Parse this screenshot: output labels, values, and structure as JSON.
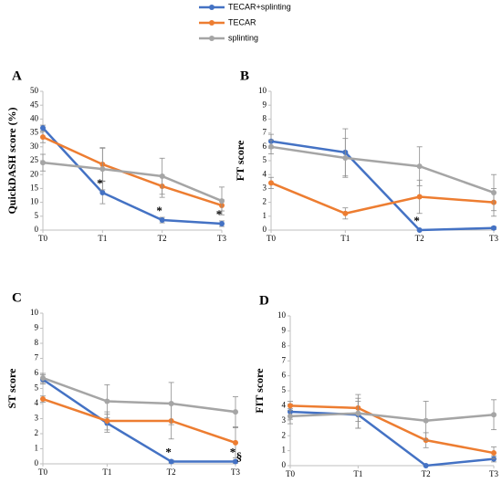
{
  "chart_data": [
    {
      "type": "line",
      "title": "A",
      "y_label": "QuickDASH score (%)",
      "categories": [
        "T0",
        "T1",
        "T2",
        "T3"
      ],
      "ylim": [
        0,
        50
      ],
      "yticks": [
        0,
        5,
        10,
        15,
        20,
        25,
        30,
        35,
        40,
        45,
        50
      ],
      "series": [
        {
          "name": "TECAR+splinting",
          "color": "#4472c4",
          "values": [
            36.8,
            13.5,
            3.6,
            2.3
          ],
          "errors": [
            1,
            4,
            1,
            1
          ]
        },
        {
          "name": "TECAR",
          "color": "#ed7d31",
          "values": [
            33.5,
            23.7,
            15.8,
            8.9
          ],
          "errors": [
            2,
            6,
            4,
            2
          ]
        },
        {
          "name": "splinting",
          "color": "#a5a5a5",
          "values": [
            24.3,
            22.0,
            19.4,
            10.5
          ],
          "errors": [
            3,
            7.5,
            6.5,
            5
          ]
        }
      ],
      "annotations": [
        {
          "text": "*",
          "category": "T1"
        },
        {
          "text": "*",
          "category": "T2"
        },
        {
          "text": "*",
          "category": "T3"
        }
      ]
    },
    {
      "type": "line",
      "title": "B",
      "y_label": "FT score",
      "categories": [
        "T0",
        "T1",
        "T2",
        "T3"
      ],
      "ylim": [
        0,
        10
      ],
      "yticks": [
        0,
        1,
        2,
        3,
        4,
        5,
        6,
        7,
        8,
        9,
        10
      ],
      "series": [
        {
          "name": "TECAR+splinting",
          "color": "#4472c4",
          "values": [
            6.4,
            5.6,
            0,
            0.15
          ],
          "errors": [
            0.5,
            1.7,
            0,
            0.1
          ]
        },
        {
          "name": "TECAR",
          "color": "#ed7d31",
          "values": [
            3.4,
            1.2,
            2.4,
            2.0
          ],
          "errors": [
            0.4,
            0.4,
            1.2,
            1.0
          ]
        },
        {
          "name": "splinting",
          "color": "#a5a5a5",
          "values": [
            6.0,
            5.2,
            4.6,
            2.7
          ],
          "errors": [
            0.5,
            1.4,
            1.4,
            1.3
          ]
        }
      ],
      "annotations": [
        {
          "text": "*",
          "category": "T2"
        }
      ]
    },
    {
      "type": "line",
      "title": "C",
      "y_label": "ST score",
      "categories": [
        "T0",
        "T1",
        "T2",
        "T3"
      ],
      "ylim": [
        0,
        10
      ],
      "yticks": [
        0,
        1,
        2,
        3,
        4,
        5,
        6,
        7,
        8,
        9,
        10
      ],
      "series": [
        {
          "name": "TECAR+splinting",
          "color": "#4472c4",
          "values": [
            5.6,
            2.7,
            0.15,
            0.15
          ],
          "errors": [
            0.3,
            0.6,
            0.1,
            0.1
          ]
        },
        {
          "name": "TECAR",
          "color": "#ed7d31",
          "values": [
            4.3,
            2.85,
            2.85,
            1.4
          ],
          "errors": [
            0.2,
            0.6,
            1.2,
            1.0
          ]
        },
        {
          "name": "splinting",
          "color": "#a5a5a5",
          "values": [
            5.7,
            4.15,
            4.0,
            3.45
          ],
          "errors": [
            0.3,
            1.1,
            1.4,
            1.0
          ]
        }
      ],
      "annotations": [
        {
          "text": "*",
          "category": "T2"
        },
        {
          "text": "*",
          "category": "T3"
        },
        {
          "text": "§",
          "category": "T3"
        }
      ]
    },
    {
      "type": "line",
      "title": "D",
      "y_label": "FIT score",
      "categories": [
        "T0",
        "T1",
        "T2",
        "T3"
      ],
      "ylim": [
        0,
        10
      ],
      "yticks": [
        0,
        1,
        2,
        3,
        4,
        5,
        6,
        7,
        8,
        9,
        10
      ],
      "series": [
        {
          "name": "TECAR+splinting",
          "color": "#4472c4",
          "values": [
            3.6,
            3.4,
            0,
            0.45
          ],
          "errors": [
            0.5,
            0.9,
            0,
            0.2
          ]
        },
        {
          "name": "TECAR",
          "color": "#ed7d31",
          "values": [
            4.0,
            3.85,
            1.7,
            0.85
          ],
          "errors": [
            0.3,
            0.9,
            0.5,
            0.4
          ]
        },
        {
          "name": "splinting",
          "color": "#a5a5a5",
          "values": [
            3.3,
            3.5,
            3.0,
            3.4
          ],
          "errors": [
            0.5,
            1.0,
            1.3,
            1.0
          ]
        }
      ],
      "annotations": []
    }
  ]
}
